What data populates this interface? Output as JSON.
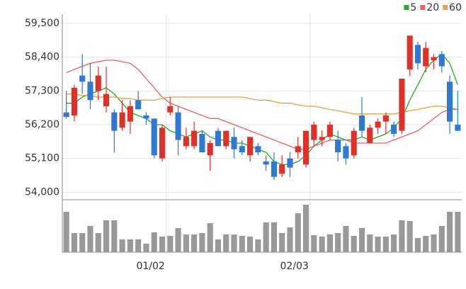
{
  "chart_data": {
    "type": "candlestick",
    "categories": [
      null,
      null,
      null,
      null,
      null,
      null,
      null,
      null,
      null,
      null,
      null,
      null,
      "01/02",
      null,
      null,
      null,
      null,
      null,
      null,
      null,
      null,
      null,
      null,
      null,
      null,
      null,
      null,
      null,
      null,
      null,
      "02/03",
      null,
      null,
      null,
      null,
      null,
      null,
      null,
      null,
      null,
      null,
      null,
      null,
      null,
      null,
      null,
      null,
      null,
      null,
      null
    ],
    "open": [
      56600,
      56500,
      57800,
      57600,
      57300,
      56800,
      56600,
      56100,
      56300,
      57000,
      56500,
      56400,
      55100,
      56600,
      56600,
      55500,
      55500,
      55900,
      55200,
      56000,
      55500,
      55800,
      55500,
      55200,
      55500,
      55000,
      55000,
      54600,
      55100,
      55300,
      54900,
      55700,
      55700,
      55800,
      55700,
      55500,
      55200,
      56500,
      55600,
      56100,
      56300,
      56200,
      56000,
      58000,
      58800,
      58100,
      58300,
      58500,
      57600,
      56200
    ],
    "high": [
      57300,
      57500,
      58500,
      58200,
      58100,
      58100,
      56700,
      57000,
      57000,
      57300,
      56600,
      56400,
      56200,
      57100,
      56800,
      56100,
      56300,
      56000,
      55700,
      56100,
      56000,
      56100,
      55700,
      55800,
      55600,
      55200,
      55300,
      55200,
      55300,
      55800,
      56000,
      56300,
      56000,
      56300,
      56000,
      55600,
      56100,
      57100,
      56200,
      56400,
      56600,
      56300,
      57700,
      59100,
      58900,
      58900,
      58500,
      58600,
      57800,
      57300
    ],
    "low": [
      56400,
      56300,
      57200,
      56700,
      57000,
      56600,
      55300,
      56000,
      55900,
      56700,
      56200,
      55100,
      55000,
      56500,
      55200,
      55400,
      55400,
      55300,
      54700,
      55500,
      55400,
      55100,
      55200,
      55000,
      55200,
      54700,
      54400,
      54500,
      54500,
      55100,
      54800,
      55500,
      55500,
      55700,
      55000,
      54900,
      55100,
      55800,
      55600,
      55900,
      55900,
      55800,
      55900,
      57800,
      58000,
      57900,
      58000,
      57900,
      55900,
      56000
    ],
    "close": [
      56450,
      57400,
      57600,
      57000,
      57800,
      57200,
      56000,
      56600,
      56800,
      56700,
      56400,
      55200,
      56100,
      56800,
      55700,
      55800,
      56000,
      55300,
      55600,
      55500,
      56000,
      55400,
      55300,
      55800,
      55300,
      54900,
      54500,
      54900,
      54800,
      55500,
      56000,
      56200,
      55800,
      56200,
      55300,
      55100,
      56000,
      56000,
      56100,
      56300,
      56500,
      55900,
      57700,
      59100,
      58200,
      58700,
      58400,
      58100,
      56300,
      56000
    ],
    "up_color": "#e0302a",
    "down_color": "#2f78d4",
    "series": [
      {
        "name": "5",
        "color": "#1fae1f",
        "values": [
          56900,
          56900,
          57100,
          57200,
          57300,
          57400,
          57200,
          56900,
          56600,
          56500,
          56400,
          56200,
          56200,
          56000,
          55900,
          55800,
          55900,
          56000,
          55800,
          55700,
          55700,
          55600,
          55600,
          55500,
          55400,
          55300,
          55000,
          54900,
          54900,
          55000,
          55200,
          55500,
          55700,
          55900,
          55800,
          55700,
          55700,
          55800,
          55700,
          55800,
          55900,
          56100,
          56400,
          57000,
          57500,
          58000,
          58300,
          58500,
          58200,
          57500
        ]
      },
      {
        "name": "20",
        "color": "#ec5f5f",
        "values": [
          57900,
          58000,
          58100,
          58200,
          58250,
          58300,
          58300,
          58250,
          58200,
          58000,
          57700,
          57400,
          57100,
          56900,
          56800,
          56700,
          56600,
          56500,
          56400,
          56400,
          56300,
          56200,
          56100,
          56000,
          55900,
          55800,
          55700,
          55600,
          55500,
          55400,
          55400,
          55500,
          55600,
          55700,
          55700,
          55700,
          55600,
          55600,
          55600,
          55600,
          55600,
          55700,
          55800,
          55900,
          56000,
          56200,
          56400,
          56600,
          56700,
          56700
        ]
      },
      {
        "name": "60",
        "color": "#e8a040",
        "values": [
          57200,
          57200,
          57150,
          57150,
          57100,
          57100,
          57100,
          57050,
          57050,
          57000,
          57000,
          57000,
          57050,
          57100,
          57100,
          57100,
          57100,
          57100,
          57100,
          57100,
          57100,
          57100,
          57100,
          57050,
          57000,
          57000,
          56950,
          56900,
          56900,
          56850,
          56800,
          56800,
          56750,
          56700,
          56650,
          56600,
          56550,
          56550,
          56550,
          56550,
          56550,
          56550,
          56600,
          56650,
          56700,
          56750,
          56800,
          56800,
          56750,
          56700
        ]
      }
    ],
    "volume": [
      57,
      27,
      27,
      37,
      27,
      45,
      45,
      18,
      18,
      18,
      12,
      28,
      22,
      23,
      34,
      25,
      25,
      27,
      41,
      18,
      25,
      25,
      23,
      22,
      18,
      42,
      42,
      27,
      35,
      55,
      67,
      24,
      22,
      25,
      27,
      37,
      23,
      34,
      25,
      22,
      22,
      25,
      45,
      44,
      20,
      23,
      25,
      37,
      57,
      57
    ],
    "volume_color": "#999999",
    "volume_ylim": [
      0,
      70
    ],
    "ylim": [
      53800,
      59800
    ],
    "yticks": [
      {
        "value": 54000,
        "label": "54,000"
      },
      {
        "value": 55100,
        "label": "55,100"
      },
      {
        "value": 56200,
        "label": "56,200"
      },
      {
        "value": 57300,
        "label": "57,300"
      },
      {
        "value": 58400,
        "label": "58,400"
      },
      {
        "value": 59500,
        "label": "59,500"
      }
    ],
    "grid": true,
    "legend": "top-right"
  }
}
